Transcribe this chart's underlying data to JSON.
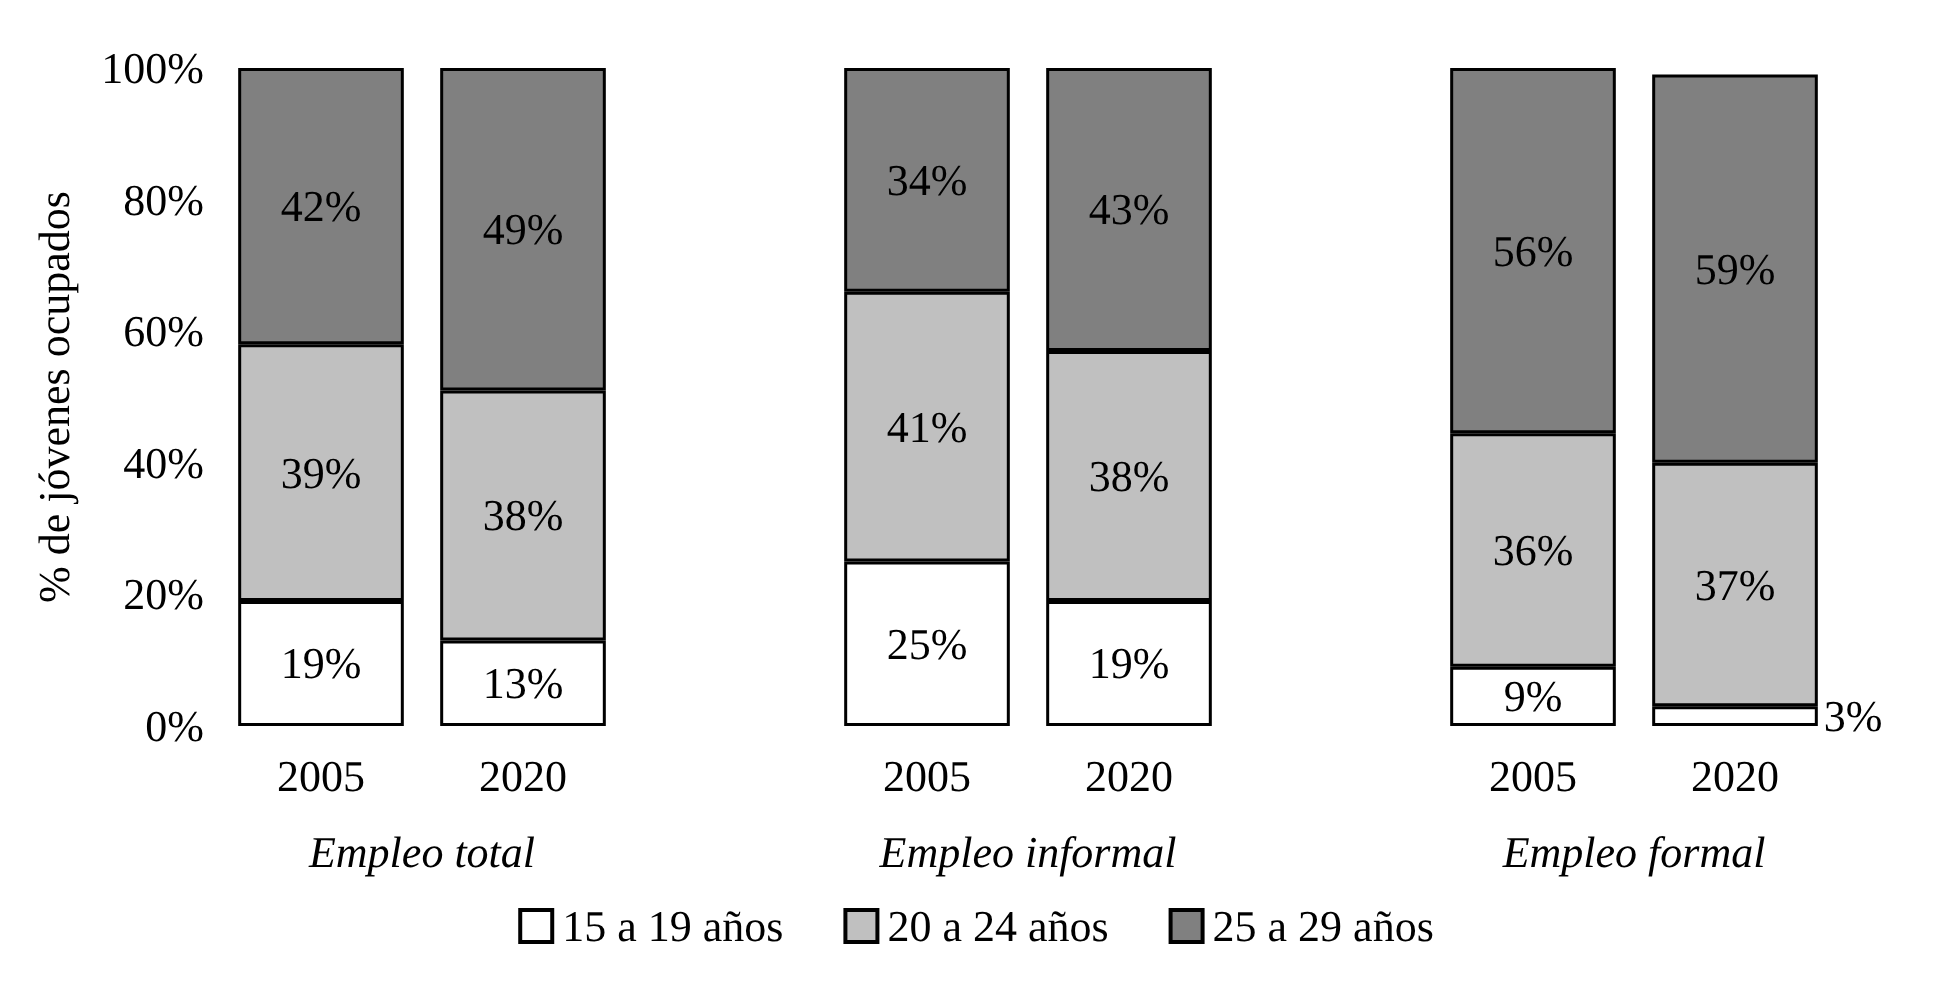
{
  "chart_data": {
    "type": "bar",
    "stacked": true,
    "ylabel": "% de jóvenes ocupados",
    "categories": [
      "2005",
      "2020",
      null,
      "2005",
      "2020",
      null,
      "2005",
      "2020"
    ],
    "series": [
      {
        "name": "15 a 19 años",
        "color": "#ffffff",
        "values": [
          19,
          13,
          null,
          25,
          19,
          null,
          9,
          3
        ],
        "value_labels": [
          "19%",
          "13%",
          null,
          "25%",
          "19%",
          null,
          "9%",
          "3%"
        ]
      },
      {
        "name": "20 a 24 años",
        "color": "#c0c0c0",
        "values": [
          39,
          38,
          null,
          41,
          38,
          null,
          35.5,
          37
        ],
        "value_labels": [
          "39%",
          "38%",
          null,
          "41%",
          "38%",
          null,
          "36%",
          "37%"
        ]
      },
      {
        "name": "25 a 29 años",
        "color": "#808080",
        "values": [
          42,
          49,
          null,
          34,
          43,
          null,
          55.5,
          59
        ],
        "value_labels": [
          "42%",
          "49%",
          null,
          "34%",
          "43%",
          null,
          "56%",
          "59%"
        ]
      }
    ],
    "ylim": [
      0,
      100
    ],
    "yticks": [
      {
        "value": 0,
        "label": "0%"
      },
      {
        "value": 20,
        "label": "20%"
      },
      {
        "value": 40,
        "label": "40%"
      },
      {
        "value": 60,
        "label": "60%"
      },
      {
        "value": 80,
        "label": "80%"
      },
      {
        "value": 100,
        "label": "100%"
      }
    ],
    "annotations": [
      "Empleo total",
      "Empleo informal",
      "Empleo formal"
    ],
    "grid": false,
    "legend": "bottom"
  }
}
